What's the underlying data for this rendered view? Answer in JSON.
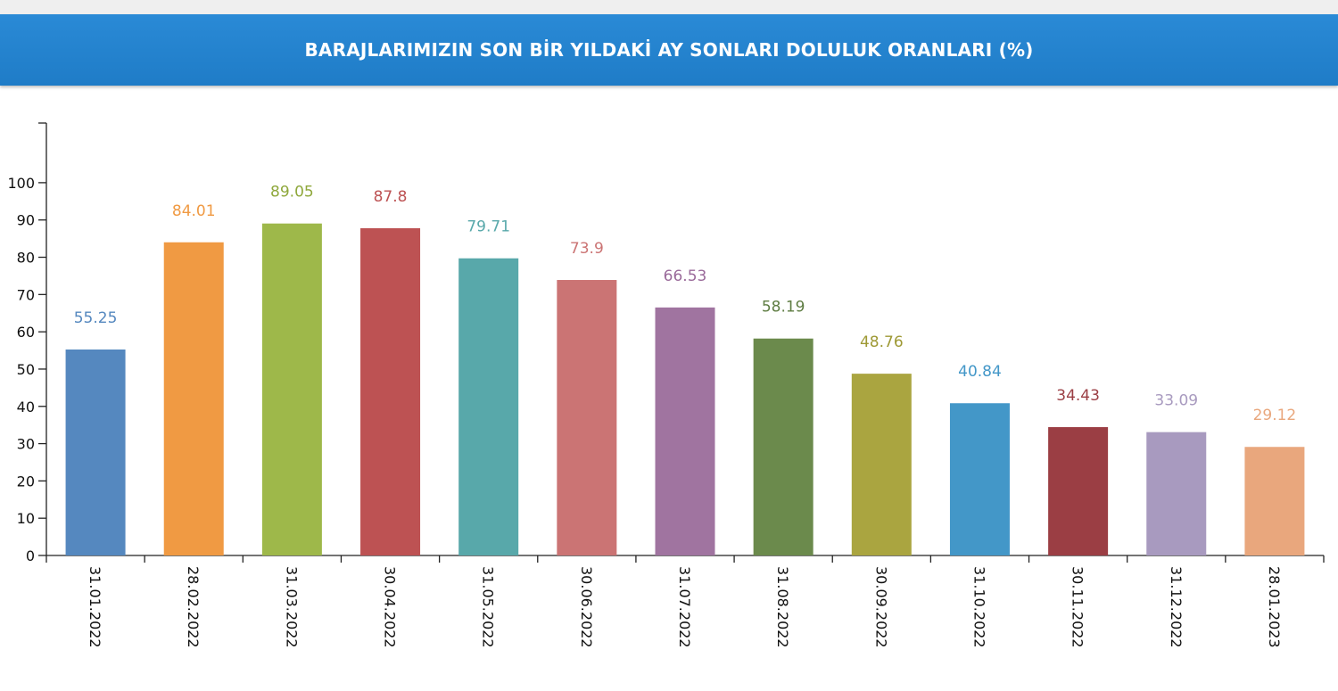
{
  "header": {
    "title": "BARAJLARIMIZIN SON BİR YILDAKİ AY SONLARI DOLULUK ORANLARI (%)"
  },
  "chart_data": {
    "type": "bar",
    "title": "BARAJLARIMIZIN SON BİR YILDAKİ AY SONLARI DOLULUK ORANLARI (%)",
    "xlabel": "",
    "ylabel": "",
    "ylim": [
      0,
      116
    ],
    "yticks": [
      0,
      10,
      20,
      30,
      40,
      50,
      60,
      70,
      80,
      90,
      100
    ],
    "grid": false,
    "legend": "none",
    "categories": [
      "31.01.2022",
      "28.02.2022",
      "31.03.2022",
      "30.04.2022",
      "31.05.2022",
      "30.06.2022",
      "31.07.2022",
      "31.08.2022",
      "30.09.2022",
      "31.10.2022",
      "30.11.2022",
      "31.12.2022",
      "28.01.2023"
    ],
    "values": [
      55.25,
      84.01,
      89.05,
      87.8,
      79.71,
      73.9,
      66.53,
      58.19,
      48.76,
      40.84,
      34.43,
      33.09,
      29.12
    ],
    "colors": [
      "#5588bf",
      "#f09a43",
      "#9eb84a",
      "#bd5253",
      "#58a8aa",
      "#cb7474",
      "#a074a0",
      "#6b8a4c",
      "#aaa540",
      "#4397c8",
      "#9b3e44",
      "#a89abf",
      "#e9a77d"
    ],
    "label_colors": [
      "#5588bf",
      "#f09a43",
      "#8fa83c",
      "#bd5253",
      "#58a8aa",
      "#cb7474",
      "#9a6a9a",
      "#5f7d43",
      "#9e9935",
      "#4397c8",
      "#9b3e44",
      "#a89abf",
      "#e9a77d"
    ]
  }
}
